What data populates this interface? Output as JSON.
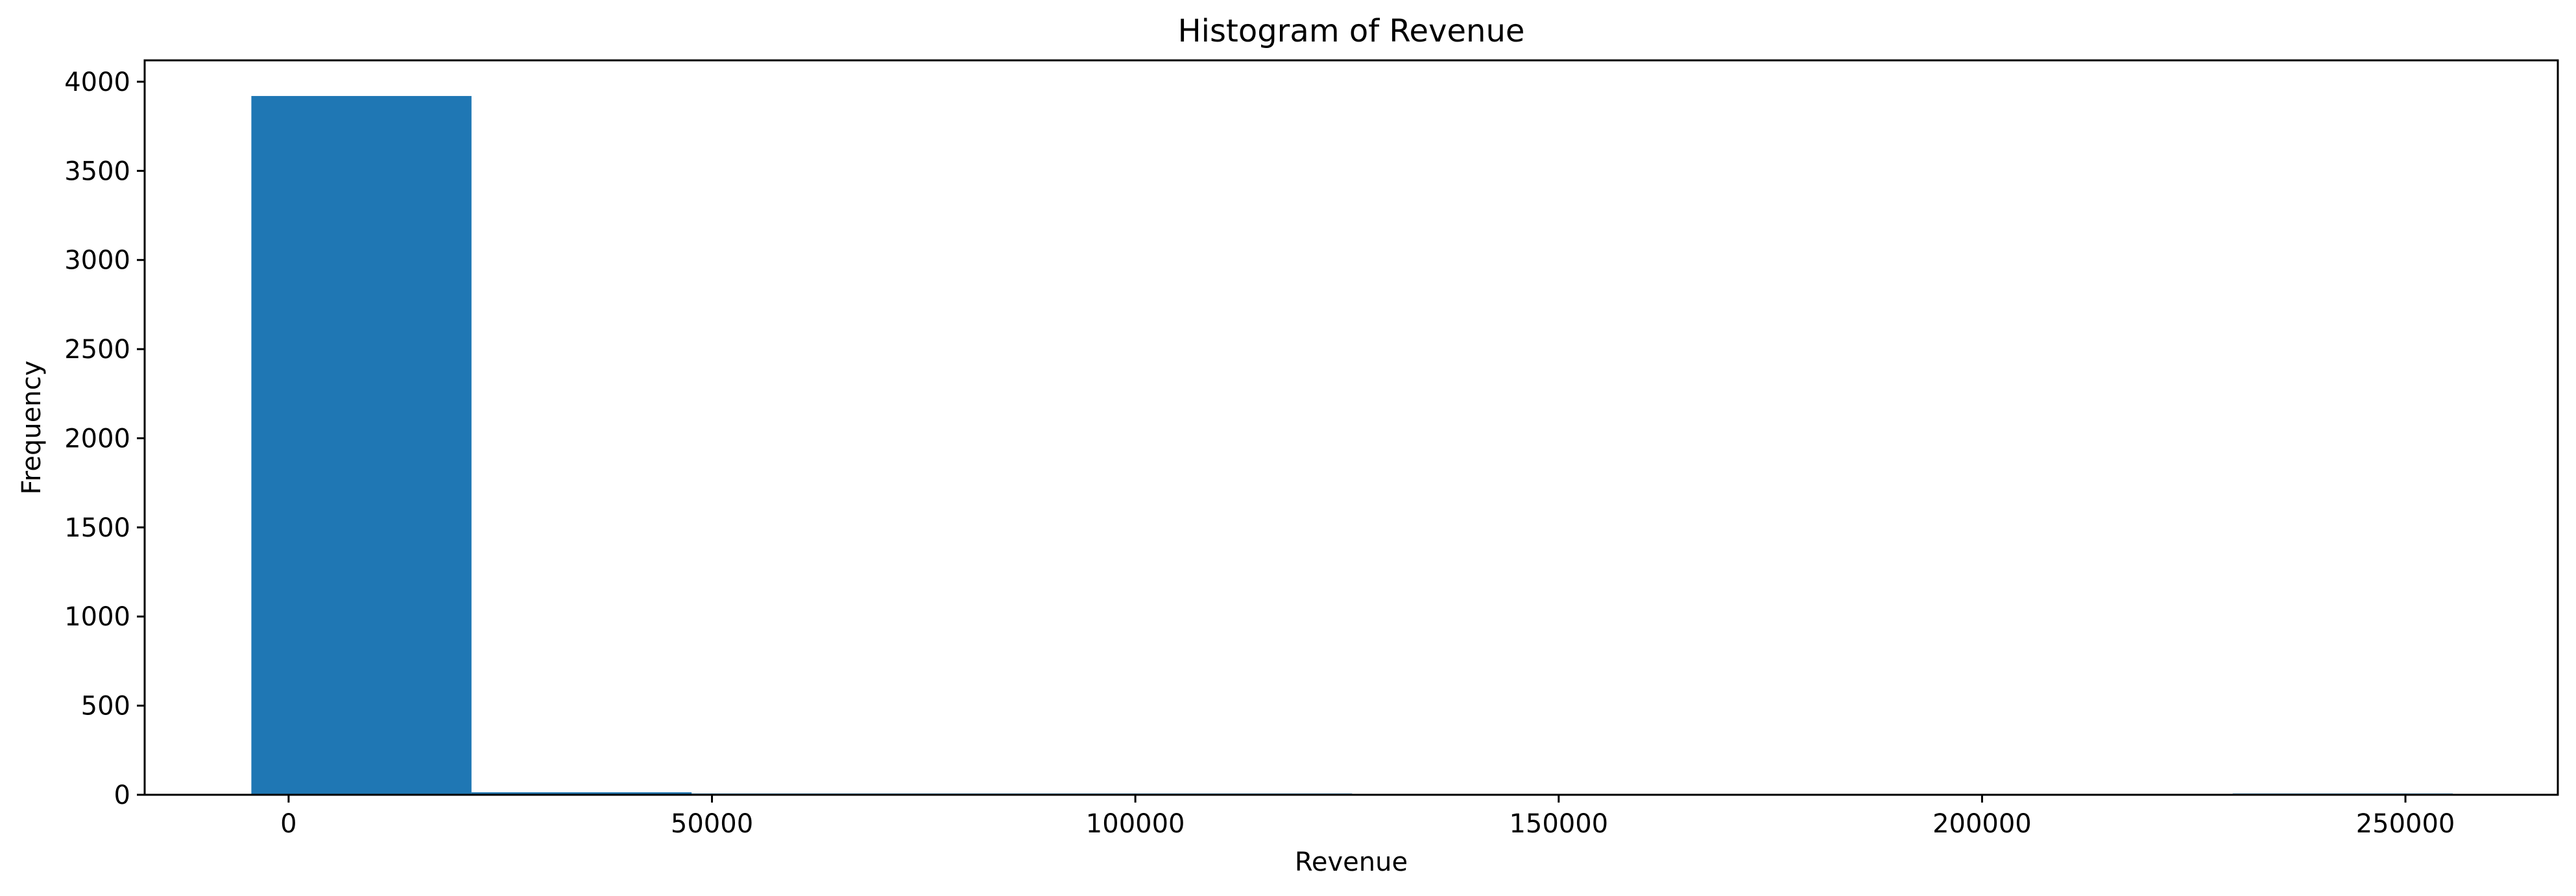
{
  "chart_data": {
    "type": "bar",
    "title": "Histogram of Revenue",
    "xlabel": "Revenue",
    "ylabel": "Frequency",
    "xlim": [
      -17000,
      268000
    ],
    "ylim": [
      0,
      4120
    ],
    "x_ticks": [
      0,
      50000,
      100000,
      150000,
      200000,
      250000
    ],
    "y_ticks": [
      0,
      500,
      1000,
      1500,
      2000,
      2500,
      3000,
      3500,
      4000
    ],
    "bins": [
      {
        "start": -4400,
        "end": 21600,
        "count": 3920
      },
      {
        "start": 21600,
        "end": 47600,
        "count": 14
      },
      {
        "start": 47600,
        "end": 73600,
        "count": 6
      },
      {
        "start": 73600,
        "end": 99600,
        "count": 1
      },
      {
        "start": 99600,
        "end": 125600,
        "count": 1
      },
      {
        "start": 125600,
        "end": 151600,
        "count": 0
      },
      {
        "start": 151600,
        "end": 177600,
        "count": 0
      },
      {
        "start": 177600,
        "end": 203600,
        "count": 0
      },
      {
        "start": 203600,
        "end": 229600,
        "count": 0
      },
      {
        "start": 229600,
        "end": 255600,
        "count": 1
      }
    ],
    "bar_color": "#1f77b4",
    "grid": false,
    "legend": "none"
  }
}
